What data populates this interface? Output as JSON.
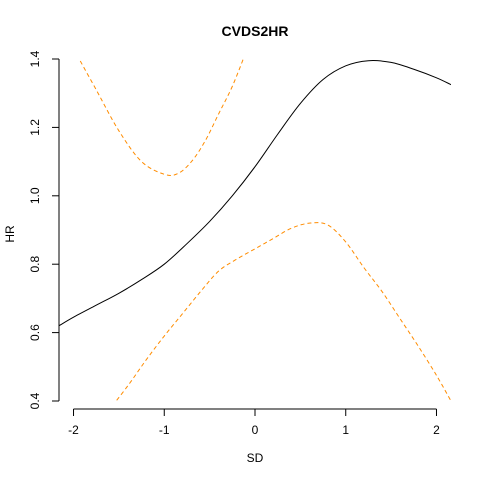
{
  "chart_data": {
    "type": "line",
    "title": "CVDS2HR",
    "xlabel": "SD",
    "ylabel": "HR",
    "xlim": [
      -2.16,
      2.16
    ],
    "ylim": [
      0.4,
      1.4
    ],
    "xticks": [
      "-2",
      "-1",
      "0",
      "1",
      "2"
    ],
    "yticks": [
      "0.4",
      "0.6",
      "0.8",
      "1.0",
      "1.2",
      "1.4"
    ],
    "grid": false,
    "legend": "none",
    "series": [
      {
        "style": "solid",
        "color": "#000000",
        "x": [
          -2.16,
          -2.0,
          -1.75,
          -1.5,
          -1.25,
          -1.0,
          -0.75,
          -0.5,
          -0.25,
          0.0,
          0.25,
          0.5,
          0.75,
          1.0,
          1.25,
          1.5,
          1.75,
          2.0,
          2.16
        ],
        "y": [
          0.62,
          0.645,
          0.68,
          0.715,
          0.755,
          0.8,
          0.86,
          0.925,
          1.0,
          1.085,
          1.18,
          1.27,
          1.34,
          1.38,
          1.395,
          1.39,
          1.37,
          1.345,
          1.325
        ]
      },
      {
        "style": "dashed",
        "color": "#ff8c00",
        "x": [
          -2.0,
          -1.75,
          -1.5,
          -1.25,
          -1.0,
          -0.85,
          -0.7,
          -0.55,
          -0.4,
          -0.25,
          -0.1
        ],
        "y": [
          1.43,
          1.31,
          1.19,
          1.1,
          1.063,
          1.065,
          1.1,
          1.16,
          1.24,
          1.32,
          1.42
        ]
      },
      {
        "style": "dashed",
        "color": "#ff8c00",
        "x": [
          -1.62,
          -1.4,
          -1.2,
          -1.0,
          -0.8,
          -0.6,
          -0.4,
          -0.2,
          0.0,
          0.2,
          0.4,
          0.6,
          0.8,
          1.0,
          1.2,
          1.4,
          1.6,
          1.8,
          2.0,
          2.16
        ],
        "y": [
          0.37,
          0.445,
          0.52,
          0.59,
          0.655,
          0.72,
          0.78,
          0.815,
          0.845,
          0.875,
          0.905,
          0.92,
          0.915,
          0.865,
          0.79,
          0.72,
          0.64,
          0.56,
          0.475,
          0.4
        ]
      }
    ]
  }
}
